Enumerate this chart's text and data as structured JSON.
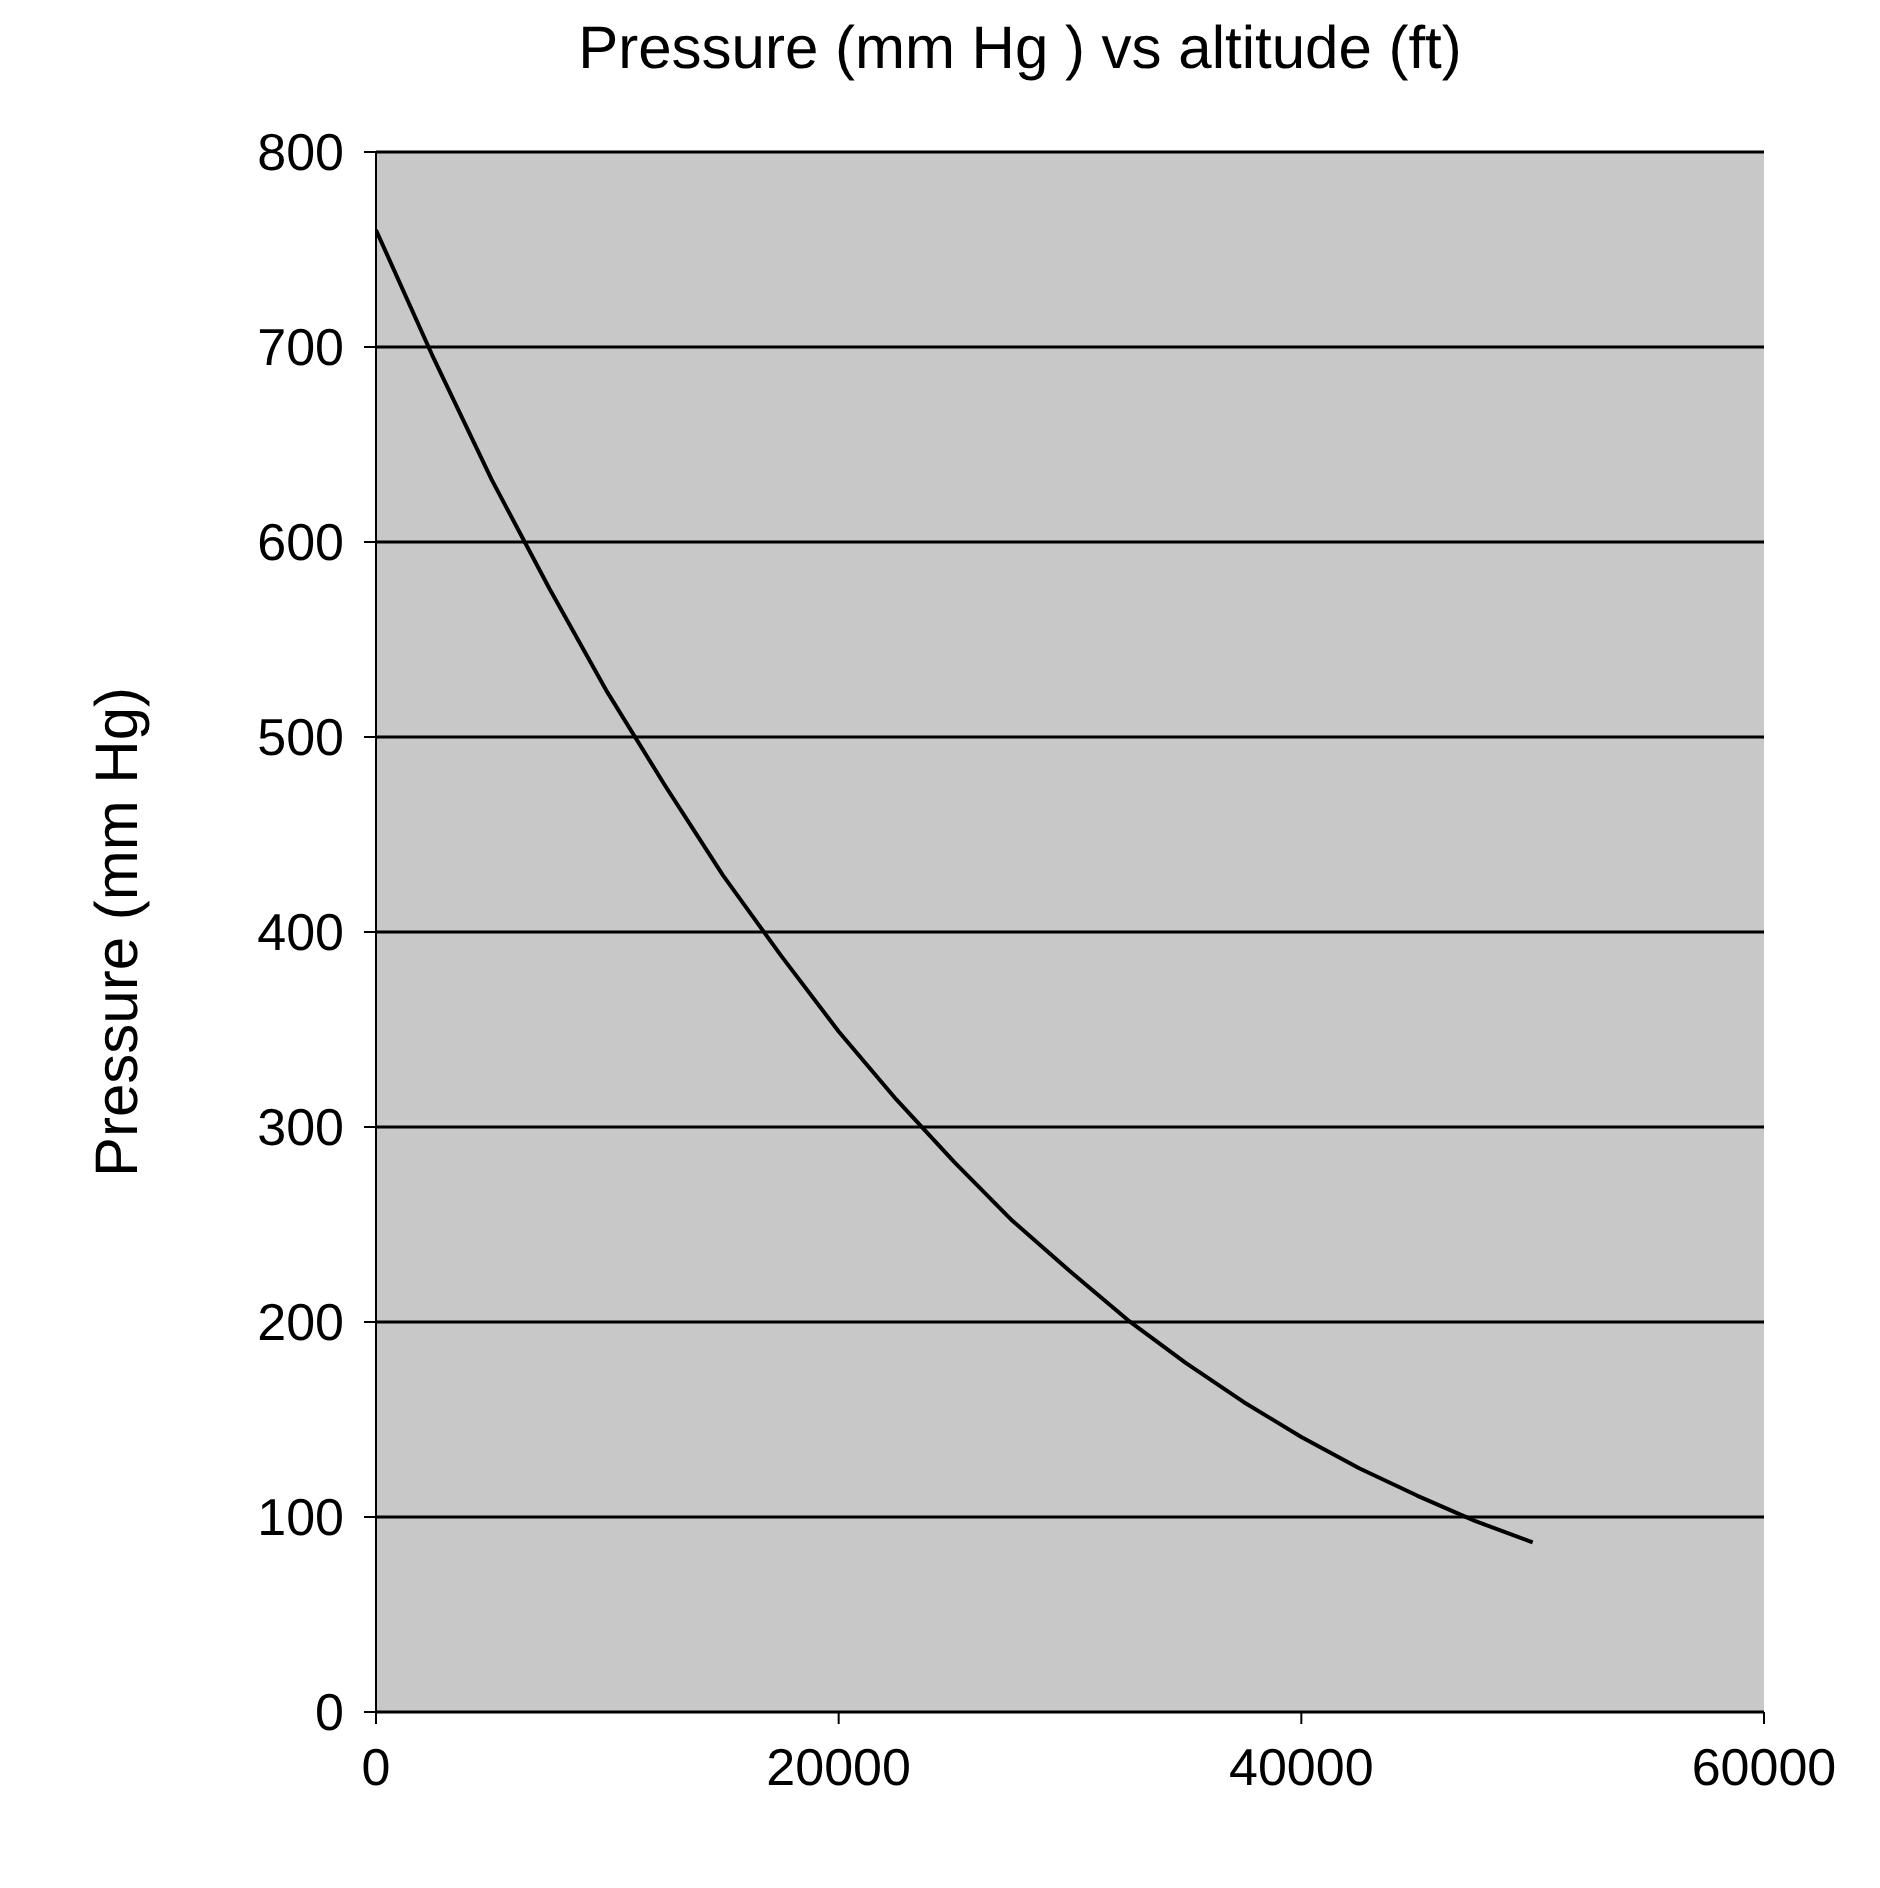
{
  "chart_data": {
    "type": "line",
    "title": "Pressure (mm Hg ) vs  altitude (ft)",
    "ylabel": "Pressure (mm Hg)",
    "x": [
      0,
      2500,
      5000,
      7500,
      10000,
      12500,
      15000,
      17500,
      20000,
      22500,
      25000,
      27500,
      30000,
      32500,
      35000,
      37500,
      40000,
      42500,
      45000,
      47500,
      50000
    ],
    "series": [
      {
        "color": "#000000",
        "values": [
          760,
          694,
          632,
          576,
          523,
          475,
          429,
          388,
          349,
          314,
          282,
          252,
          226,
          201,
          179,
          159,
          141,
          125,
          111,
          98,
          87
        ]
      }
    ],
    "xlim": [
      0,
      60000
    ],
    "xticks": [
      0,
      20000,
      40000,
      60000
    ],
    "ylim": [
      0,
      800
    ],
    "yticks": [
      0,
      100,
      200,
      300,
      400,
      500,
      600,
      700,
      800
    ],
    "grid": "y",
    "marker": "none",
    "line_style": "solid"
  }
}
